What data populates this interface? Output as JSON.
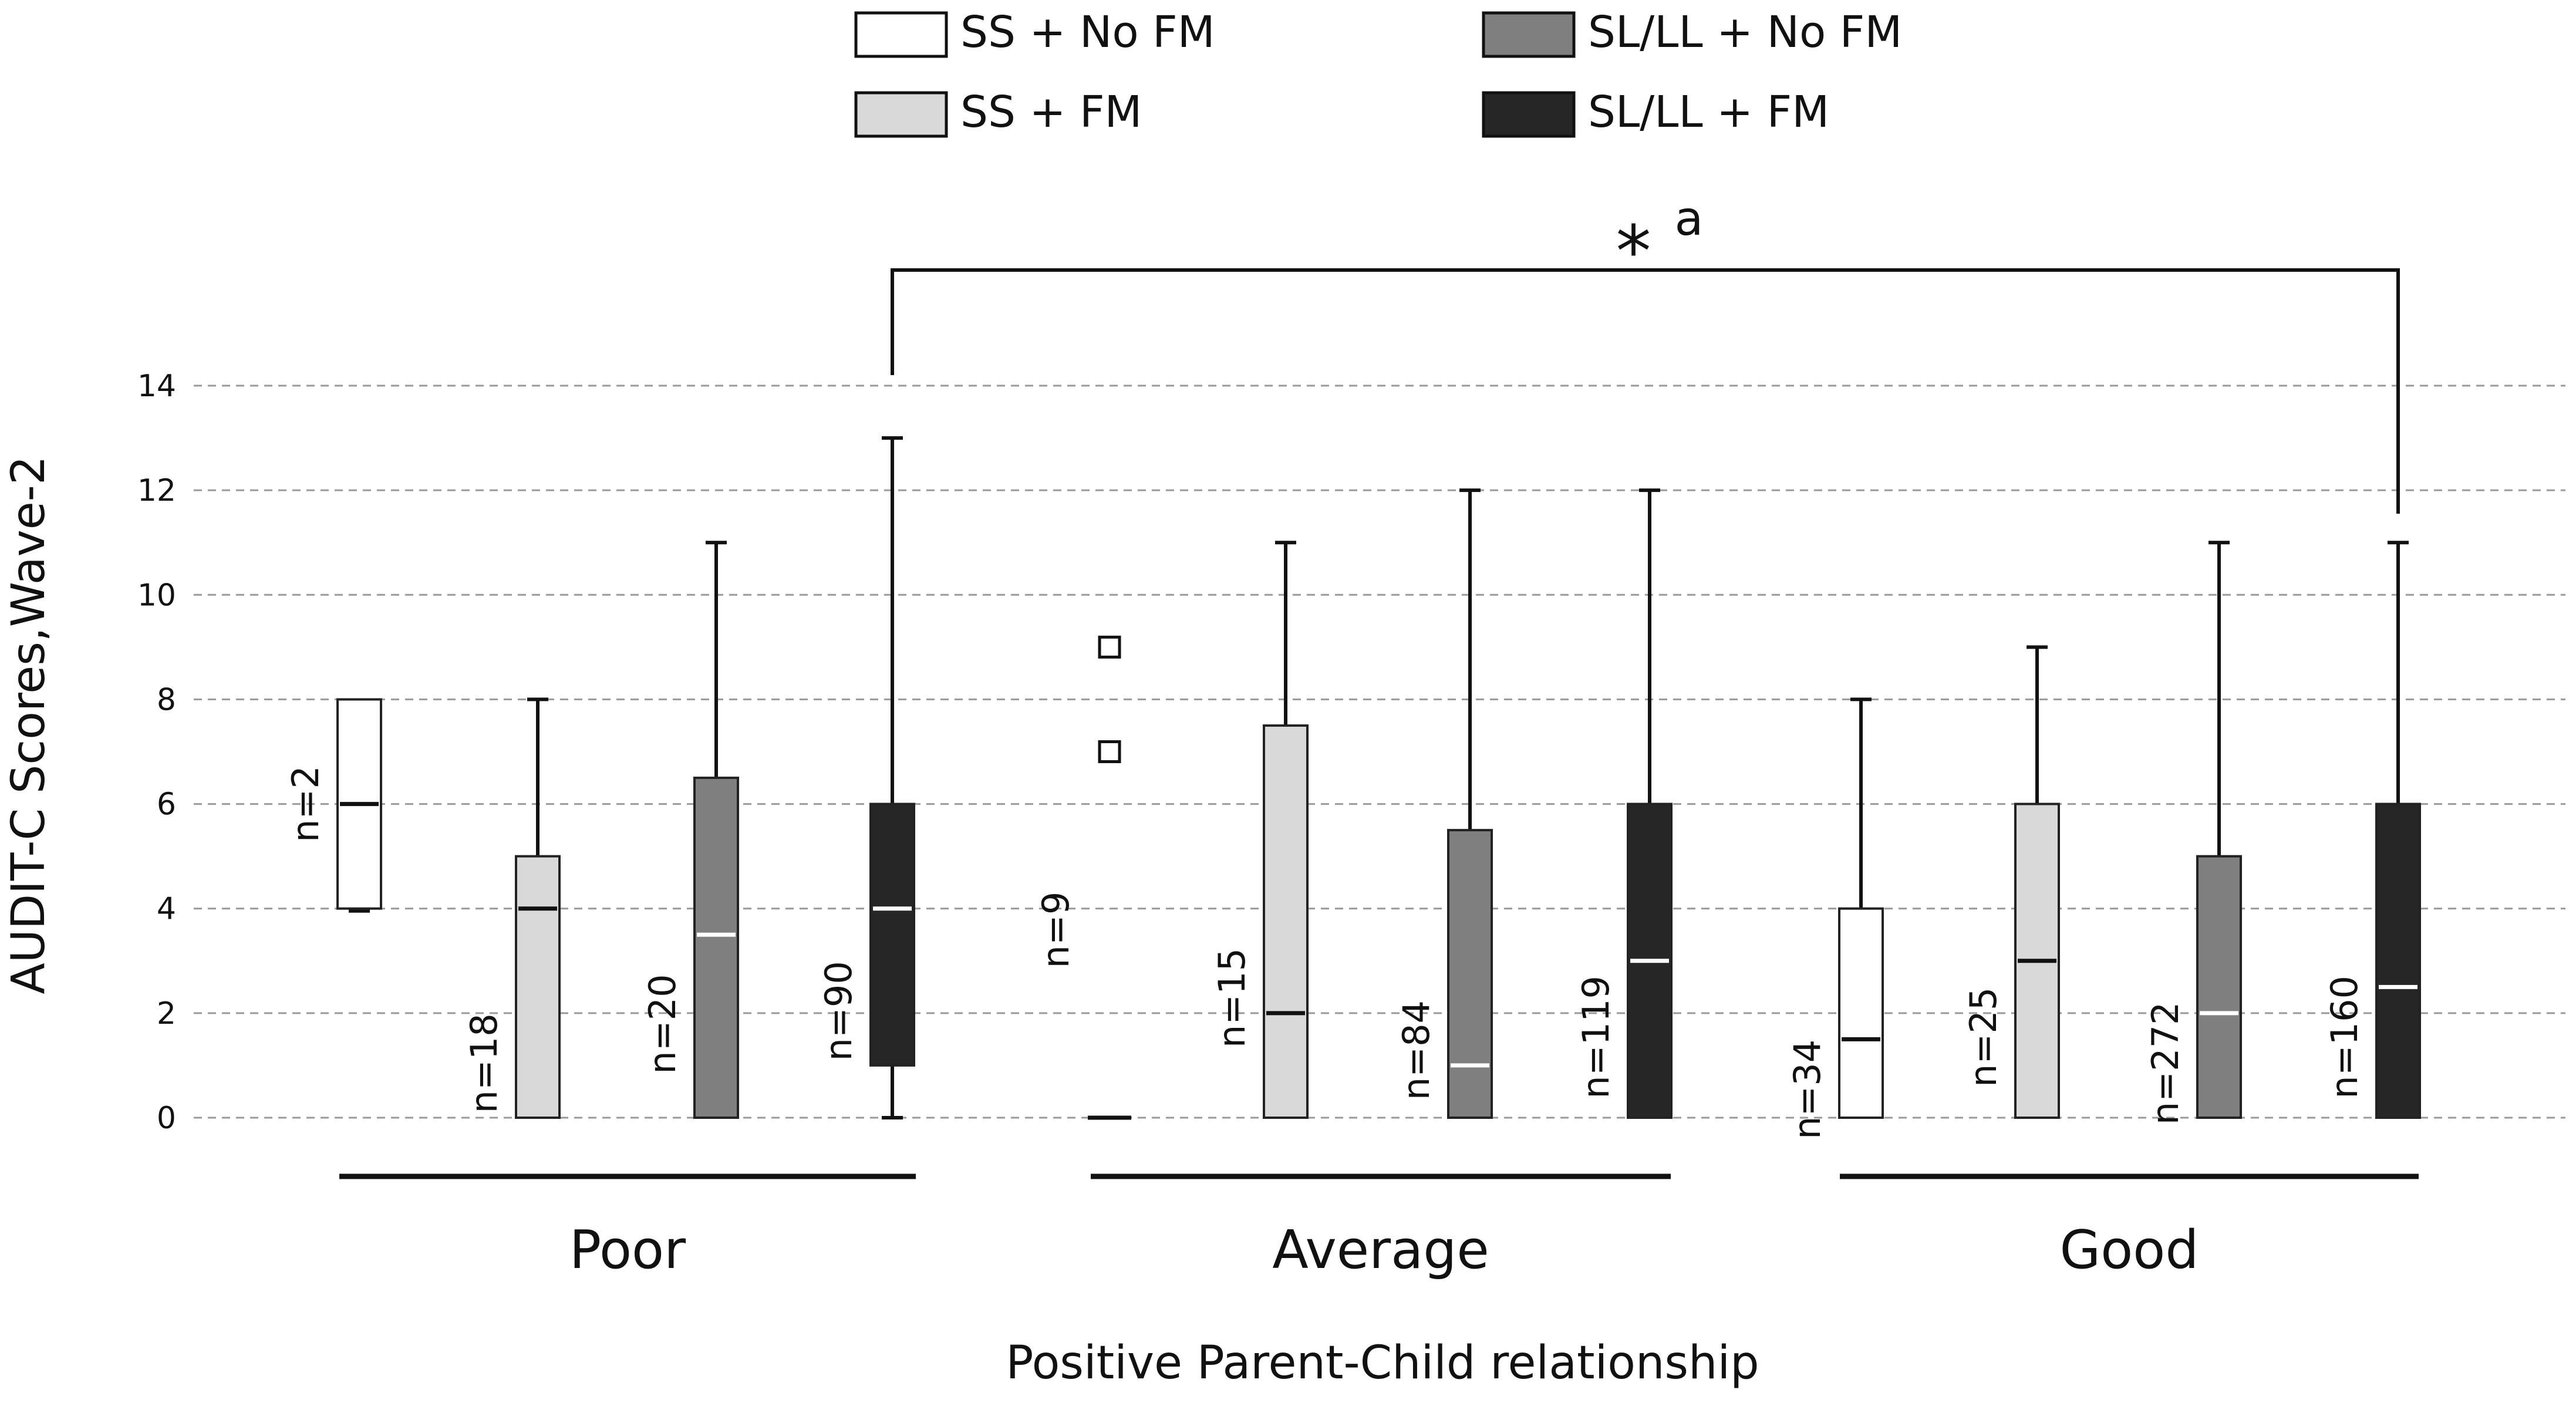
{
  "chart_data": {
    "type": "boxplot",
    "ylabel": "AUDIT-C Scores,Wave-2",
    "xlabel": "Positive Parent-Child relationship",
    "ylim": [
      0,
      14
    ],
    "yticks": [
      "0",
      "2",
      "4",
      "6",
      "8",
      "10",
      "12",
      "14"
    ],
    "grid": "horizontal-dashed",
    "legend": {
      "placement": "top",
      "entries": [
        {
          "label": "SS + No FM",
          "color": "#ffffff"
        },
        {
          "label": "SS + FM",
          "color": "#d9d9d9"
        },
        {
          "label": "SL/LL + No FM",
          "color": "#7f7f7f"
        },
        {
          "label": "SL/LL + FM",
          "color": "#262626"
        }
      ]
    },
    "significance": {
      "text": "*",
      "superscript": "a",
      "from": "Poor / SL/LL + FM",
      "to": "Good / SL/LL + FM"
    },
    "groups": [
      {
        "label": "Poor",
        "boxes": [
          {
            "series": "SS + No FM",
            "n": "n=2",
            "min": 4,
            "q1": 4,
            "median": 6,
            "q3": 8,
            "max": 8,
            "outliers": []
          },
          {
            "series": "SS + FM",
            "n": "n=18",
            "min": 0,
            "q1": 0,
            "median": 4,
            "q3": 5,
            "max": 8,
            "outliers": []
          },
          {
            "series": "SL/LL + No FM",
            "n": "n=20",
            "min": 0,
            "q1": 0,
            "median": 3.5,
            "q3": 6.5,
            "max": 11,
            "outliers": []
          },
          {
            "series": "SL/LL + FM",
            "n": "n=90",
            "min": 0,
            "q1": 1,
            "median": 4,
            "q3": 6,
            "max": 13,
            "outliers": []
          }
        ]
      },
      {
        "label": "Average",
        "boxes": [
          {
            "series": "SS + No FM",
            "n": "n=9",
            "min": 0,
            "q1": 0,
            "median": 0,
            "q3": 0,
            "max": 0,
            "outliers": [
              7,
              9
            ]
          },
          {
            "series": "SS + FM",
            "n": "n=15",
            "min": 0,
            "q1": 0,
            "median": 2,
            "q3": 7.5,
            "max": 11,
            "outliers": []
          },
          {
            "series": "SL/LL + No FM",
            "n": "n=84",
            "min": 0,
            "q1": 0,
            "median": 1,
            "q3": 5.5,
            "max": 12,
            "outliers": []
          },
          {
            "series": "SL/LL + FM",
            "n": "n=119",
            "min": 0,
            "q1": 0,
            "median": 3,
            "q3": 6,
            "max": 12,
            "outliers": []
          }
        ]
      },
      {
        "label": "Good",
        "boxes": [
          {
            "series": "SS + No FM",
            "n": "n=34",
            "min": 0,
            "q1": 0,
            "median": 1.5,
            "q3": 4,
            "max": 8,
            "outliers": []
          },
          {
            "series": "SS + FM",
            "n": "n=25",
            "min": 0,
            "q1": 0,
            "median": 3,
            "q3": 6,
            "max": 9,
            "outliers": []
          },
          {
            "series": "SL/LL + No FM",
            "n": "n=272",
            "min": 0,
            "q1": 0,
            "median": 2,
            "q3": 5,
            "max": 11,
            "outliers": []
          },
          {
            "series": "SL/LL + FM",
            "n": "n=160",
            "min": 0,
            "q1": 0,
            "median": 2.5,
            "q3": 6,
            "max": 11,
            "outliers": []
          }
        ]
      }
    ]
  }
}
